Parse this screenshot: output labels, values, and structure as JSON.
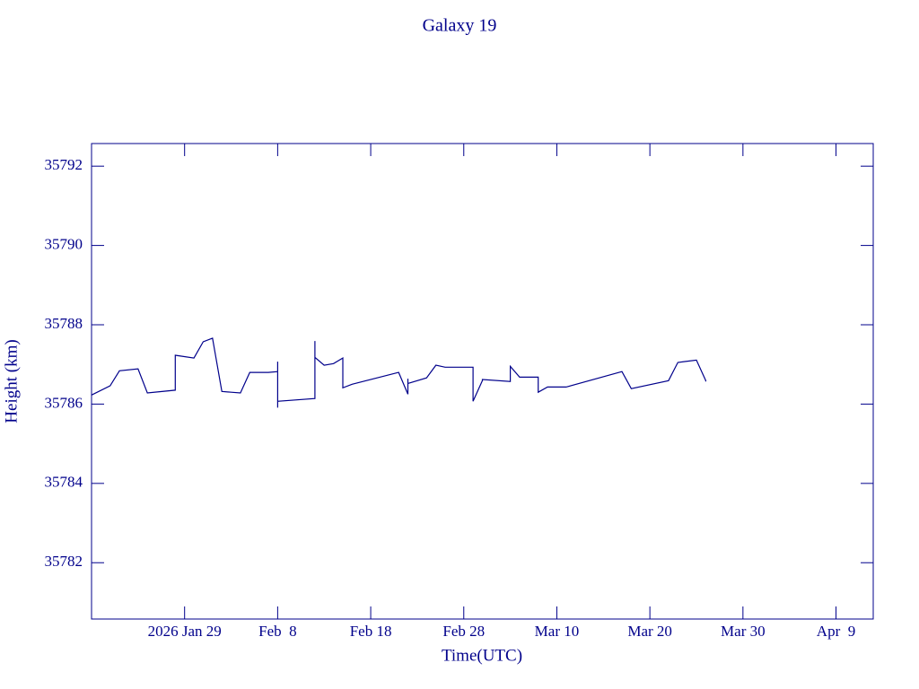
{
  "chart_data": {
    "type": "line",
    "title": "Galaxy 19",
    "x_label": "Time(UTC)",
    "y_label": "Height (km)",
    "color": "#00008b",
    "x": [
      "2026-01-19",
      "2026-01-21",
      "2026-01-22",
      "2026-01-24",
      "2026-01-25",
      "2026-01-28",
      "2026-01-28",
      "2026-01-30",
      "2026-01-31",
      "2026-02-01",
      "2026-02-02",
      "2026-02-03",
      "2026-02-04",
      "2026-02-05",
      "2026-02-07",
      "2026-02-08",
      "2026-02-08",
      "2026-02-08",
      "2026-02-08",
      "2026-02-12",
      "2026-02-12",
      "2026-02-12",
      "2026-02-13",
      "2026-02-14",
      "2026-02-15",
      "2026-02-15",
      "2026-02-16",
      "2026-02-21",
      "2026-02-22",
      "2026-02-22",
      "2026-02-22",
      "2026-02-24",
      "2026-02-25",
      "2026-02-26",
      "2026-03-01",
      "2026-03-01",
      "2026-03-02",
      "2026-03-02",
      "2026-03-05",
      "2026-03-05",
      "2026-03-06",
      "2026-03-08",
      "2026-03-08",
      "2026-03-09",
      "2026-03-11",
      "2026-03-17",
      "2026-03-18",
      "2026-03-22",
      "2026-03-23",
      "2026-03-25",
      "2026-03-26",
      "2026-03-26"
    ],
    "values": [
      35786.23,
      35786.46,
      35786.84,
      35786.89,
      35786.28,
      35786.35,
      35787.23,
      35787.16,
      35787.57,
      35787.66,
      35786.32,
      35786.3,
      35786.28,
      35786.8,
      35786.8,
      35786.82,
      35787.07,
      35785.91,
      35786.07,
      35786.14,
      35787.59,
      35787.18,
      35786.98,
      35787.02,
      35787.16,
      35786.41,
      35786.5,
      35786.8,
      35786.25,
      35786.64,
      35786.52,
      35786.66,
      35786.98,
      35786.93,
      35786.93,
      35786.07,
      35786.59,
      35786.62,
      35786.57,
      35786.95,
      35786.68,
      35786.68,
      35786.3,
      35786.43,
      35786.43,
      35786.82,
      35786.39,
      35786.59,
      35787.05,
      35787.11,
      35786.59,
      35786.57
    ],
    "xlim": [
      "2026-01-19",
      "2026-04-13"
    ],
    "xticks": [
      {
        "value": "2026-01-29",
        "label": "2026 Jan 29"
      },
      {
        "value": "2026-02-08",
        "label": "Feb  8"
      },
      {
        "value": "2026-02-18",
        "label": "Feb 18"
      },
      {
        "value": "2026-02-28",
        "label": "Feb 28"
      },
      {
        "value": "2026-03-10",
        "label": "Mar 10"
      },
      {
        "value": "2026-03-20",
        "label": "Mar 20"
      },
      {
        "value": "2026-03-30",
        "label": "Mar 30"
      },
      {
        "value": "2026-04-09",
        "label": "Apr  9"
      }
    ],
    "ylim": [
      35780.58,
      35792.57
    ],
    "yticks": [
      35782,
      35784,
      35786,
      35788,
      35790,
      35792
    ]
  }
}
